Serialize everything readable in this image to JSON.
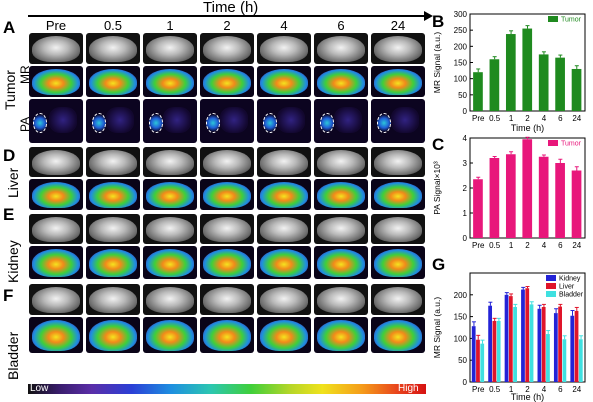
{
  "figure": {
    "time_axis_label": "Time (h)",
    "time_points": [
      "Pre",
      "0.5",
      "1",
      "2",
      "4",
      "6",
      "24"
    ],
    "panel_letters": {
      "a": "A",
      "b": "B",
      "c": "C",
      "d": "D",
      "e": "E",
      "f": "F",
      "g": "G"
    },
    "row_labels": {
      "tumor": "Tumor",
      "mr": "MR",
      "pa": "PA",
      "liver": "Liver",
      "kidney": "Kidney",
      "bladder": "Bladder"
    },
    "colorbar": {
      "low": "Low",
      "high": "High"
    },
    "colors": {
      "tumor_bar": "#1f8a1f",
      "pa_bar": "#e8177b",
      "kidney": "#2323d6",
      "liver": "#e0142a",
      "bladder": "#3fe0e0"
    }
  },
  "chart_data": [
    {
      "id": "B",
      "type": "bar",
      "categories": [
        "Pre",
        "0.5",
        "1",
        "2",
        "4",
        "6",
        "24"
      ],
      "series": [
        {
          "name": "Tumor",
          "values": [
            120,
            160,
            238,
            255,
            175,
            165,
            130
          ],
          "errors": [
            10,
            8,
            10,
            9,
            8,
            8,
            10
          ]
        }
      ],
      "xlabel": "Time (h)",
      "ylabel": "MR Signal (a.u.)",
      "ylim": [
        0,
        300
      ],
      "yticks": [
        0,
        50,
        100,
        150,
        200,
        250,
        300
      ],
      "legend": "top-right"
    },
    {
      "id": "C",
      "type": "bar",
      "categories": [
        "Pre",
        "0.5",
        "1",
        "2",
        "4",
        "6",
        "24"
      ],
      "series": [
        {
          "name": "Tumor",
          "values": [
            2.35,
            3.2,
            3.35,
            3.95,
            3.25,
            3.0,
            2.7
          ],
          "errors": [
            0.08,
            0.06,
            0.1,
            0.08,
            0.07,
            0.15,
            0.15
          ]
        }
      ],
      "xlabel": "",
      "ylabel": "PA Signal×10³",
      "ylim": [
        0,
        4
      ],
      "yticks": [
        0,
        1,
        2,
        3,
        4
      ],
      "legend": "top-right"
    },
    {
      "id": "G",
      "type": "bar",
      "categories": [
        "Pre",
        "0.5",
        "1",
        "2",
        "4",
        "6",
        "24"
      ],
      "series": [
        {
          "name": "Kidney",
          "values": [
            128,
            175,
            200,
            212,
            168,
            158,
            152
          ],
          "errors": [
            10,
            8,
            5,
            5,
            8,
            10,
            12
          ]
        },
        {
          "name": "Liver",
          "values": [
            97,
            140,
            197,
            215,
            172,
            173,
            163
          ],
          "errors": [
            10,
            6,
            5,
            4,
            6,
            5,
            8
          ]
        },
        {
          "name": "Bladder",
          "values": [
            88,
            140,
            172,
            178,
            110,
            98,
            98
          ],
          "errors": [
            8,
            6,
            6,
            6,
            8,
            8,
            8
          ]
        }
      ],
      "xlabel": "Time (h)",
      "ylabel": "MR Signal (a.u.)",
      "ylim": [
        0,
        250
      ],
      "yticks": [
        0,
        50,
        100,
        150,
        200
      ],
      "legend": "top-right"
    }
  ]
}
